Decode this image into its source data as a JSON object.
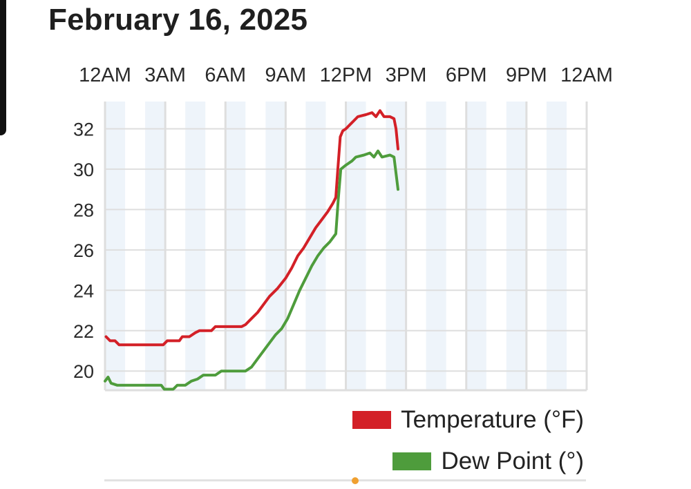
{
  "header": {
    "title": "February 16, 2025"
  },
  "colors": {
    "temperature": "#d32027",
    "dew_point": "#4e9c3c",
    "band": "#eef4fa",
    "grid": "#dedede",
    "marker": "#f0a030"
  },
  "legend": {
    "items": [
      {
        "label": "Temperature (°F)",
        "color": "#d32027"
      },
      {
        "label": "Dew Point (°)",
        "color": "#4e9c3c"
      }
    ]
  },
  "chart_data": {
    "type": "line",
    "title": "February 16, 2025",
    "xlabel": "",
    "ylabel": "",
    "x_unit": "hours",
    "xlim": [
      0,
      24
    ],
    "ylim": [
      19,
      33
    ],
    "x_ticks": [
      {
        "x": 0,
        "label": "12AM"
      },
      {
        "x": 3,
        "label": "3AM"
      },
      {
        "x": 6,
        "label": "6AM"
      },
      {
        "x": 9,
        "label": "9AM"
      },
      {
        "x": 12,
        "label": "12PM"
      },
      {
        "x": 15,
        "label": "3PM"
      },
      {
        "x": 18,
        "label": "6PM"
      },
      {
        "x": 21,
        "label": "9PM"
      },
      {
        "x": 24,
        "label": "12AM"
      }
    ],
    "y_ticks": [
      20,
      22,
      24,
      26,
      28,
      30,
      32
    ],
    "grid": true,
    "legend_position": "bottom-right",
    "series": [
      {
        "name": "Temperature (°F)",
        "color": "#d32027",
        "points": [
          [
            0.05,
            21.7
          ],
          [
            0.25,
            21.5
          ],
          [
            0.5,
            21.5
          ],
          [
            0.7,
            21.3
          ],
          [
            1.2,
            21.3
          ],
          [
            2.0,
            21.3
          ],
          [
            2.9,
            21.3
          ],
          [
            3.1,
            21.5
          ],
          [
            3.7,
            21.5
          ],
          [
            3.85,
            21.7
          ],
          [
            4.2,
            21.7
          ],
          [
            4.5,
            21.9
          ],
          [
            4.7,
            22.0
          ],
          [
            5.3,
            22.0
          ],
          [
            5.5,
            22.2
          ],
          [
            6.2,
            22.2
          ],
          [
            6.8,
            22.2
          ],
          [
            7.0,
            22.3
          ],
          [
            7.3,
            22.6
          ],
          [
            7.6,
            22.9
          ],
          [
            7.9,
            23.3
          ],
          [
            8.2,
            23.7
          ],
          [
            8.6,
            24.1
          ],
          [
            9.0,
            24.6
          ],
          [
            9.3,
            25.1
          ],
          [
            9.6,
            25.7
          ],
          [
            9.9,
            26.1
          ],
          [
            10.2,
            26.6
          ],
          [
            10.5,
            27.1
          ],
          [
            10.8,
            27.5
          ],
          [
            11.1,
            27.9
          ],
          [
            11.35,
            28.3
          ],
          [
            11.5,
            28.6
          ],
          [
            11.6,
            30.0
          ],
          [
            11.72,
            31.6
          ],
          [
            11.85,
            31.9
          ],
          [
            12.0,
            32.0
          ],
          [
            12.3,
            32.3
          ],
          [
            12.6,
            32.6
          ],
          [
            13.0,
            32.7
          ],
          [
            13.3,
            32.8
          ],
          [
            13.5,
            32.6
          ],
          [
            13.7,
            32.9
          ],
          [
            13.9,
            32.6
          ],
          [
            14.2,
            32.6
          ],
          [
            14.4,
            32.5
          ],
          [
            14.5,
            32.0
          ],
          [
            14.6,
            31.0
          ]
        ]
      },
      {
        "name": "Dew Point (°)",
        "color": "#4e9c3c",
        "points": [
          [
            0.0,
            19.5
          ],
          [
            0.15,
            19.7
          ],
          [
            0.3,
            19.4
          ],
          [
            0.6,
            19.3
          ],
          [
            1.5,
            19.3
          ],
          [
            2.8,
            19.3
          ],
          [
            2.95,
            19.1
          ],
          [
            3.4,
            19.1
          ],
          [
            3.6,
            19.3
          ],
          [
            4.0,
            19.3
          ],
          [
            4.3,
            19.5
          ],
          [
            4.6,
            19.6
          ],
          [
            4.9,
            19.8
          ],
          [
            5.5,
            19.8
          ],
          [
            5.8,
            20.0
          ],
          [
            6.5,
            20.0
          ],
          [
            7.0,
            20.0
          ],
          [
            7.3,
            20.2
          ],
          [
            7.6,
            20.6
          ],
          [
            7.9,
            21.0
          ],
          [
            8.2,
            21.4
          ],
          [
            8.5,
            21.8
          ],
          [
            8.8,
            22.1
          ],
          [
            9.1,
            22.6
          ],
          [
            9.4,
            23.3
          ],
          [
            9.7,
            24.0
          ],
          [
            10.0,
            24.6
          ],
          [
            10.3,
            25.2
          ],
          [
            10.6,
            25.7
          ],
          [
            10.9,
            26.1
          ],
          [
            11.2,
            26.4
          ],
          [
            11.5,
            26.8
          ],
          [
            11.62,
            28.5
          ],
          [
            11.75,
            30.0
          ],
          [
            12.0,
            30.2
          ],
          [
            12.3,
            30.4
          ],
          [
            12.5,
            30.6
          ],
          [
            12.9,
            30.7
          ],
          [
            13.2,
            30.8
          ],
          [
            13.4,
            30.6
          ],
          [
            13.6,
            30.9
          ],
          [
            13.8,
            30.6
          ],
          [
            14.2,
            30.7
          ],
          [
            14.4,
            30.6
          ],
          [
            14.6,
            29.0
          ]
        ]
      }
    ]
  }
}
